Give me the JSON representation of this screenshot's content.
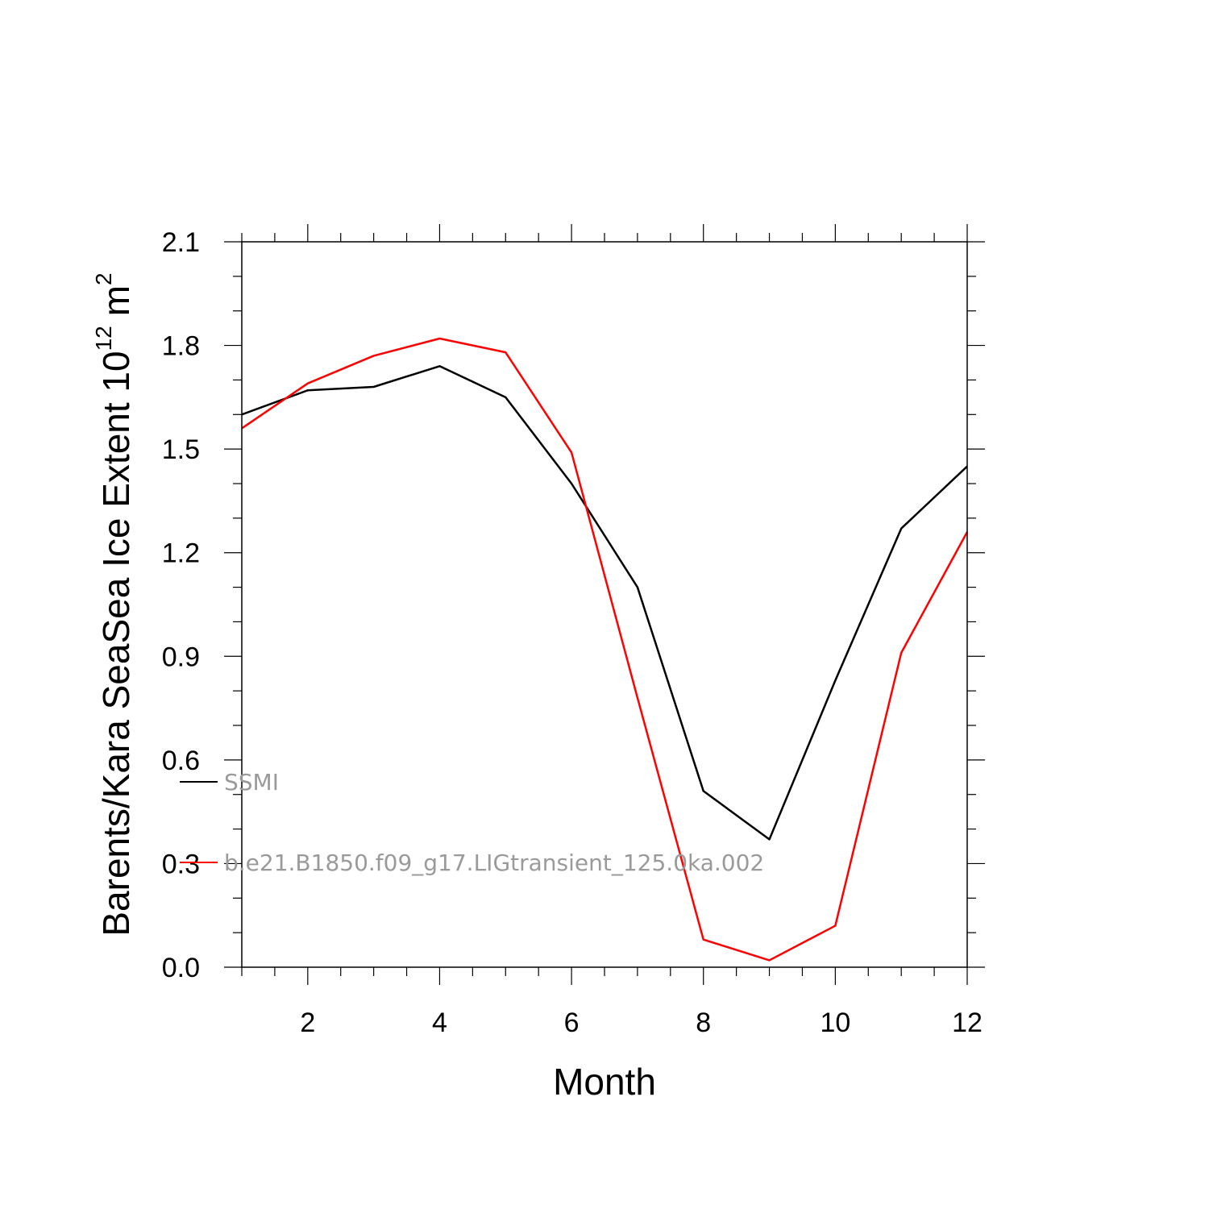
{
  "chart_data": {
    "type": "line",
    "xlabel": "Month",
    "ylabel": {
      "main": "Barents/Kara SeaSea Ice Extent 10",
      "superscript": "12",
      "unit": "m",
      "unit_superscript": "2"
    },
    "xlim": [
      1,
      12
    ],
    "ylim": [
      0.0,
      2.1
    ],
    "xticks": [
      2,
      4,
      6,
      8,
      10,
      12
    ],
    "xtick_labels": [
      "2",
      "4",
      "6",
      "8",
      "10",
      "12"
    ],
    "yticks": [
      0.0,
      0.3,
      0.6,
      0.9,
      1.2,
      1.5,
      1.8,
      2.1
    ],
    "ytick_labels": [
      "0.0",
      "0.3",
      "0.6",
      "0.9",
      "1.2",
      "1.5",
      "1.8",
      "2.1"
    ],
    "grid": false,
    "x": [
      1,
      2,
      3,
      4,
      5,
      6,
      7,
      8,
      9,
      10,
      11,
      12
    ],
    "series": [
      {
        "name": "SSMI",
        "color": "#000000",
        "values": [
          1.6,
          1.67,
          1.68,
          1.74,
          1.65,
          1.4,
          1.1,
          0.51,
          0.37,
          0.83,
          1.27,
          1.45
        ]
      },
      {
        "name": "b.e21.B1850.f09_g17.LIGtransient_125.0ka.002",
        "color": "#ff0000",
        "values": [
          1.56,
          1.69,
          1.77,
          1.82,
          1.78,
          1.49,
          0.78,
          0.08,
          0.02,
          0.12,
          0.91,
          1.26
        ]
      }
    ]
  }
}
